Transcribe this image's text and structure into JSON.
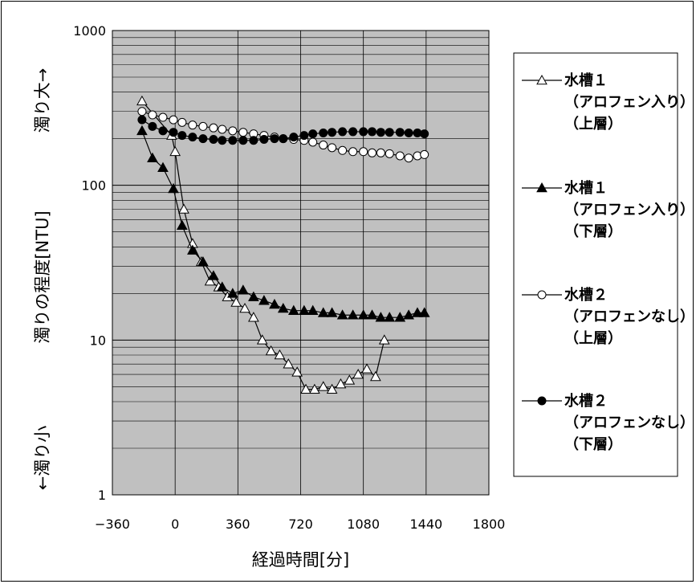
{
  "chart_data": {
    "type": "line",
    "title": "",
    "xlabel": "経過時間[分]",
    "ylabel": "濁りの程度[NTU]",
    "y_top_label": "濁り大→",
    "y_bottom_label": "←濁り小",
    "xlim": [
      -360,
      1800
    ],
    "ylim": [
      1,
      1000
    ],
    "yscale": "log",
    "x_ticks": [
      "-360",
      "0",
      "360",
      "720",
      "1080",
      "1440",
      "1800"
    ],
    "y_ticks": [
      "1",
      "10",
      "100",
      "1000"
    ],
    "grid": true,
    "plot_background": "#c0c0c0",
    "legend_position": "right",
    "series": [
      {
        "name": "水槽１（アロフェン入り）（上層）",
        "legend_lines": [
          "水槽１",
          "（アロフェン入り）",
          "（上層）"
        ],
        "marker": "open-triangle",
        "x": [
          -190,
          -20,
          0,
          50,
          100,
          150,
          200,
          250,
          300,
          350,
          400,
          450,
          500,
          550,
          600,
          650,
          700,
          750,
          800,
          850,
          900,
          950,
          1000,
          1050,
          1100,
          1150,
          1200,
          1250,
          1300,
          1350,
          1400
        ],
        "y": [
          350,
          210,
          165,
          70,
          42,
          32,
          24,
          22,
          19,
          17.5,
          16,
          14,
          10,
          8.5,
          8,
          7,
          6.2,
          4.8,
          4.8,
          5,
          4.8,
          5.2,
          5.5,
          6,
          6.5,
          5.8,
          10,
          null,
          null,
          null,
          null
        ]
      },
      {
        "name": "水槽１（アロフェン入り）（下層）",
        "legend_lines": [
          "水槽１",
          "（アロフェン入り）",
          "（下層）"
        ],
        "marker": "filled-triangle",
        "x": [
          -190,
          -130,
          -70,
          -10,
          40,
          100,
          160,
          220,
          270,
          330,
          390,
          450,
          510,
          570,
          620,
          680,
          740,
          790,
          850,
          900,
          960,
          1020,
          1080,
          1130,
          1180,
          1230,
          1290,
          1340,
          1390,
          1430
        ],
        "y": [
          225,
          150,
          130,
          95,
          55,
          38,
          32,
          26,
          22,
          20,
          21,
          19,
          18,
          17,
          16,
          15.5,
          15.5,
          15.5,
          15,
          15,
          14.5,
          14.5,
          14.5,
          14.5,
          14,
          14,
          14,
          14.5,
          15,
          15
        ]
      },
      {
        "name": "水槽２（アロフェンなし）（上層）",
        "legend_lines": [
          "水槽２",
          "（アロフェンなし）",
          "（上層）"
        ],
        "marker": "open-circle",
        "x": [
          -190,
          -130,
          -70,
          -10,
          40,
          100,
          160,
          220,
          270,
          330,
          390,
          450,
          510,
          570,
          620,
          680,
          740,
          790,
          850,
          900,
          960,
          1020,
          1080,
          1130,
          1180,
          1230,
          1290,
          1340,
          1390,
          1430
        ],
        "y": [
          300,
          285,
          275,
          265,
          255,
          245,
          240,
          235,
          230,
          225,
          220,
          215,
          210,
          205,
          200,
          198,
          195,
          190,
          182,
          175,
          168,
          165,
          165,
          162,
          162,
          160,
          155,
          150,
          155,
          158
        ]
      },
      {
        "name": "水槽２（アロフェンなし）（下層）",
        "legend_lines": [
          "水槽２",
          "（アロフェンなし）",
          "（下層）"
        ],
        "marker": "filled-circle",
        "x": [
          -190,
          -130,
          -70,
          -10,
          40,
          100,
          160,
          220,
          270,
          330,
          390,
          450,
          510,
          570,
          620,
          680,
          740,
          790,
          850,
          900,
          960,
          1020,
          1080,
          1130,
          1180,
          1230,
          1290,
          1340,
          1390,
          1430
        ],
        "y": [
          265,
          240,
          225,
          220,
          210,
          205,
          200,
          198,
          195,
          195,
          195,
          195,
          198,
          200,
          200,
          205,
          210,
          215,
          218,
          220,
          222,
          222,
          222,
          222,
          220,
          220,
          220,
          218,
          218,
          215
        ]
      }
    ]
  }
}
